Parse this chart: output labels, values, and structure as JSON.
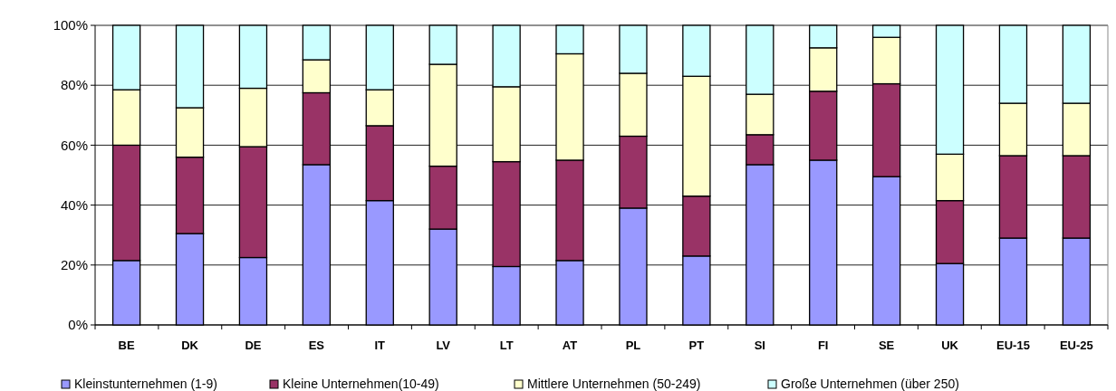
{
  "chart_data": {
    "type": "bar",
    "stacked": true,
    "categories": [
      "BE",
      "DK",
      "DE",
      "ES",
      "IT",
      "LV",
      "LT",
      "AT",
      "PL",
      "PT",
      "SI",
      "FI",
      "SE",
      "UK",
      "EU-15",
      "EU-25"
    ],
    "series": [
      {
        "name": "Kleinstunternehmen (1-9)",
        "color": "#9999ff",
        "values": [
          21.5,
          30.5,
          22.5,
          53.5,
          41.5,
          32,
          19.5,
          21.5,
          39,
          23,
          53.5,
          55,
          49.5,
          20.5,
          29,
          29
        ]
      },
      {
        "name": "Kleine Unternehmen(10-49)",
        "color": "#993366",
        "values": [
          38.5,
          25.5,
          37,
          24,
          25,
          21,
          35,
          33.5,
          24,
          20,
          10,
          23,
          31,
          21,
          27.5,
          27.5
        ]
      },
      {
        "name": "Mittlere Unternehmen (50-249)",
        "color": "#ffffcc",
        "values": [
          18.5,
          16.5,
          19.5,
          11,
          12,
          34,
          25,
          35.5,
          21,
          40,
          13.5,
          14.5,
          15.5,
          15.5,
          17.5,
          17.5
        ]
      },
      {
        "name": "Große Unternehmen (über 250)",
        "color": "#ccffff",
        "values": [
          21.5,
          27.5,
          21,
          11.5,
          21.5,
          13,
          20.5,
          9.5,
          16,
          17,
          23,
          7.5,
          4,
          43,
          26,
          26
        ]
      }
    ],
    "ylim": [
      0,
      100
    ],
    "yticks": [
      {
        "value": 0,
        "label": "0%"
      },
      {
        "value": 20,
        "label": "20%"
      },
      {
        "value": 40,
        "label": "40%"
      },
      {
        "value": 60,
        "label": "60%"
      },
      {
        "value": 80,
        "label": "80%"
      },
      {
        "value": 100,
        "label": "100%"
      }
    ],
    "grid": "y",
    "legend": "bottom"
  }
}
